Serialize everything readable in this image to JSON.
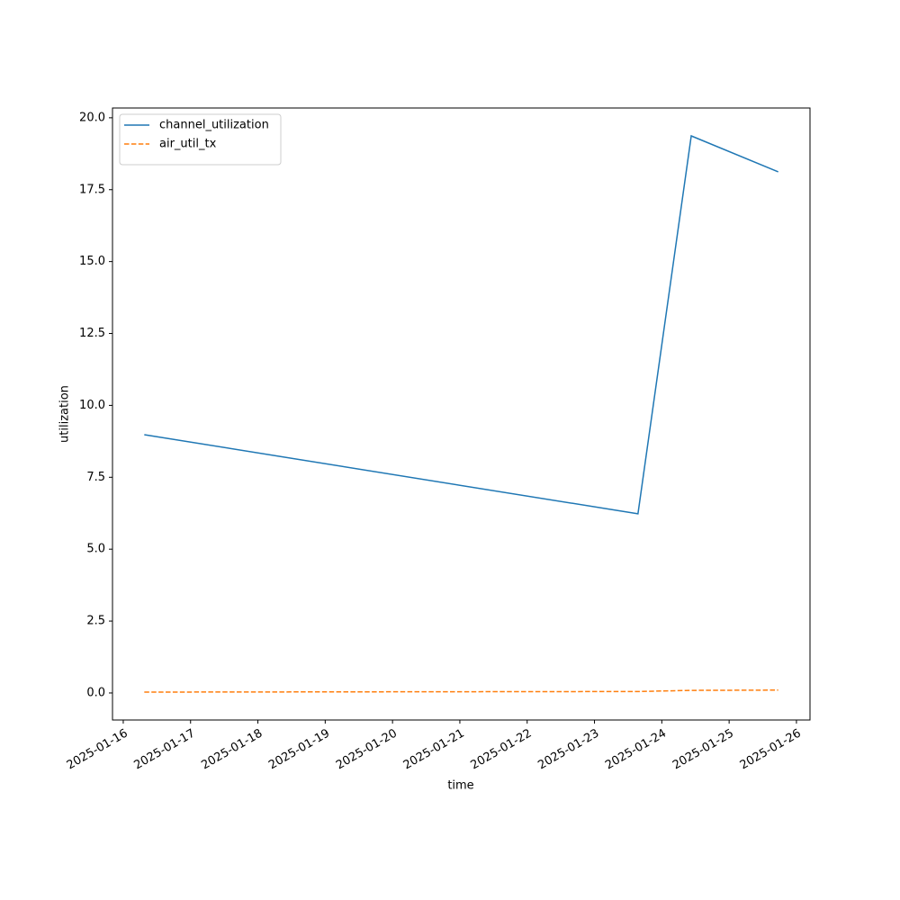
{
  "chart_data": {
    "type": "line",
    "x_label": "time",
    "y_label": "utilization",
    "x": [
      "2025-01-16T07:30",
      "2025-01-23T15:30",
      "2025-01-24T10:30",
      "2025-01-25T17:30"
    ],
    "series": [
      {
        "name": "channel_utilization",
        "color": "#1f77b4",
        "linestyle": "solid",
        "values": [
          8.98,
          6.23,
          19.37,
          18.12
        ]
      },
      {
        "name": "air_util_tx",
        "color": "#ff7f0e",
        "linestyle": "dashed",
        "values": [
          0.03,
          0.05,
          0.09,
          0.1
        ]
      }
    ],
    "xlim": [
      "2025-01-15T20:10",
      "2025-01-26T04:50"
    ],
    "xticks": [
      "2025-01-16",
      "2025-01-17",
      "2025-01-18",
      "2025-01-19",
      "2025-01-20",
      "2025-01-21",
      "2025-01-22",
      "2025-01-23",
      "2025-01-24",
      "2025-01-25",
      "2025-01-26"
    ],
    "ylim": [
      -0.94,
      20.34
    ],
    "yticks": [
      {
        "value": 0,
        "label": "0.0"
      },
      2.5,
      {
        "value": 5,
        "label": "5.0"
      },
      7.5,
      {
        "value": 10,
        "label": "10.0"
      },
      12.5,
      {
        "value": 15,
        "label": "15.0"
      },
      17.5,
      {
        "value": 20,
        "label": "20.0"
      }
    ],
    "grid": false,
    "legend": "upper left"
  }
}
